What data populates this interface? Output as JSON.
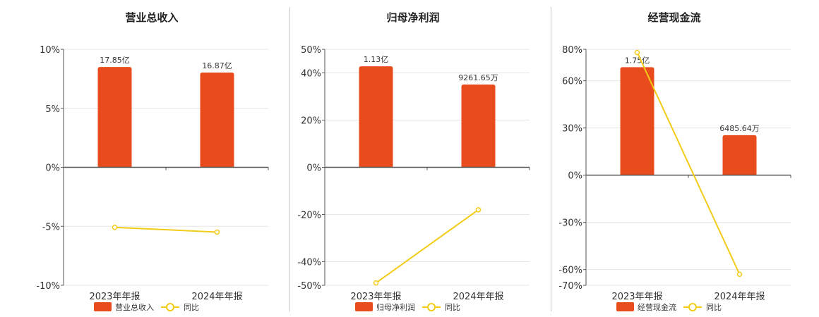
{
  "colors": {
    "bar": "#e84c1c",
    "line": "#f2cc18",
    "grid": "#e6e6e6",
    "axis": "#555555"
  },
  "chart_data": [
    {
      "type": "bar",
      "title": "营业总收入",
      "categories": [
        "2023年年报",
        "2024年年报"
      ],
      "series": [
        {
          "name": "营业总收入",
          "type": "bar",
          "values": [
            17.85,
            16.87
          ],
          "labels": [
            "17.85亿",
            "16.87亿"
          ]
        },
        {
          "name": "同比",
          "type": "line",
          "values": [
            -5.09,
            -5.49
          ]
        }
      ],
      "yticks": [
        10,
        5,
        0,
        -5,
        -10
      ],
      "ytick_labels": [
        "10%",
        "5%",
        "0%",
        "-5%",
        "-10%"
      ],
      "bar_axis_max": 21.0,
      "legend": [
        "营业总收入",
        "同比"
      ],
      "legend_position": "bottom"
    },
    {
      "type": "bar",
      "title": "归母净利润",
      "categories": [
        "2023年年报",
        "2024年年报"
      ],
      "series": [
        {
          "name": "归母净利润",
          "type": "bar",
          "values": [
            1.13,
            0.926165
          ],
          "labels": [
            "1.13亿",
            "9261.65万"
          ]
        },
        {
          "name": "同比",
          "type": "line",
          "values": [
            -49.0,
            -18.0
          ]
        }
      ],
      "yticks": [
        50,
        40,
        20,
        0,
        -20,
        -40,
        -50
      ],
      "ytick_labels": [
        "50%",
        "40%",
        "20%",
        "0%",
        "-20%",
        "-40%",
        "-50%"
      ],
      "bar_axis_max": 1.32,
      "legend": [
        "归母净利润",
        "同比"
      ],
      "legend_position": "bottom"
    },
    {
      "type": "bar",
      "title": "经营现金流",
      "categories": [
        "2023年年报",
        "2024年年报"
      ],
      "series": [
        {
          "name": "经营现金流",
          "type": "bar",
          "values": [
            1.75,
            0.648564
          ],
          "labels": [
            "1.75亿",
            "6485.64万"
          ]
        },
        {
          "name": "同比",
          "type": "line",
          "values": [
            78.0,
            -63.0
          ]
        }
      ],
      "yticks": [
        80,
        60,
        30,
        0,
        -30,
        -60,
        -70
      ],
      "ytick_labels": [
        "80%",
        "60%",
        "30%",
        "0%",
        "-30%",
        "-60%",
        "-70%"
      ],
      "bar_axis_max": 2.04,
      "legend": [
        "经营现金流",
        "同比"
      ],
      "legend_position": "bottom"
    }
  ]
}
